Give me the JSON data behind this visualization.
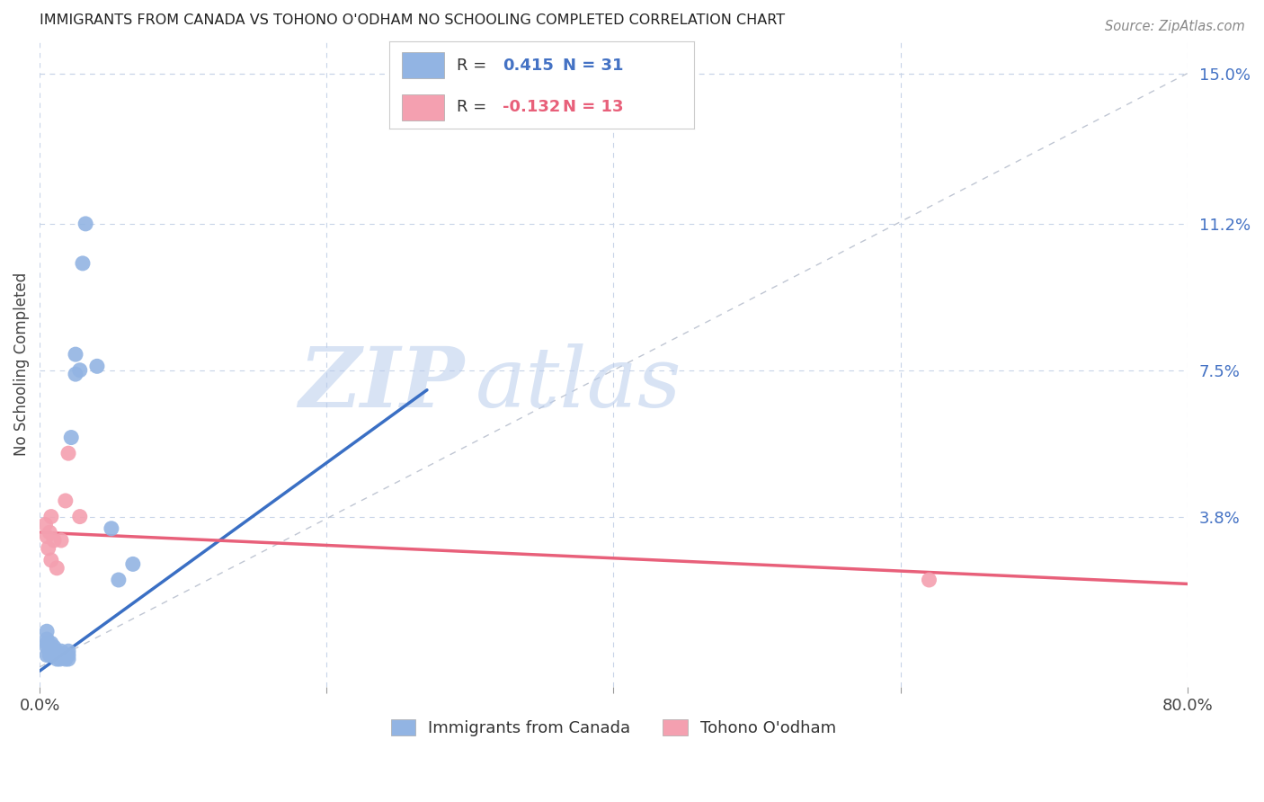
{
  "title": "IMMIGRANTS FROM CANADA VS TOHONO O'ODHAM NO SCHOOLING COMPLETED CORRELATION CHART",
  "source": "Source: ZipAtlas.com",
  "ylabel": "No Schooling Completed",
  "xlim": [
    0.0,
    0.8
  ],
  "ylim": [
    -0.005,
    0.158
  ],
  "xticks": [
    0.0,
    0.2,
    0.4,
    0.6,
    0.8
  ],
  "xtick_labels": [
    "0.0%",
    "",
    "",
    "",
    "80.0%"
  ],
  "ytick_labels_right": [
    "15.0%",
    "11.2%",
    "7.5%",
    "3.8%"
  ],
  "yticks_right": [
    0.15,
    0.112,
    0.075,
    0.038
  ],
  "blue_R": "0.415",
  "blue_N": "31",
  "pink_R": "-0.132",
  "pink_N": "13",
  "blue_color": "#92b4e3",
  "pink_color": "#f4a0b0",
  "blue_line_color": "#3a6fc4",
  "pink_line_color": "#e8607a",
  "diagonal_color": "#b0b8c8",
  "watermark_zip": "ZIP",
  "watermark_atlas": "atlas",
  "blue_scatter_x": [
    0.005,
    0.005,
    0.005,
    0.005,
    0.005,
    0.007,
    0.007,
    0.008,
    0.008,
    0.01,
    0.01,
    0.012,
    0.012,
    0.014,
    0.015,
    0.015,
    0.018,
    0.018,
    0.02,
    0.02,
    0.02,
    0.022,
    0.025,
    0.025,
    0.028,
    0.03,
    0.032,
    0.04,
    0.05,
    0.055,
    0.065
  ],
  "blue_scatter_y": [
    0.003,
    0.005,
    0.006,
    0.007,
    0.009,
    0.003,
    0.004,
    0.003,
    0.006,
    0.004,
    0.005,
    0.002,
    0.004,
    0.002,
    0.003,
    0.004,
    0.002,
    0.003,
    0.002,
    0.003,
    0.004,
    0.058,
    0.074,
    0.079,
    0.075,
    0.102,
    0.112,
    0.076,
    0.035,
    0.022,
    0.026
  ],
  "pink_scatter_x": [
    0.004,
    0.005,
    0.006,
    0.007,
    0.008,
    0.008,
    0.01,
    0.012,
    0.015,
    0.018,
    0.02,
    0.028,
    0.62
  ],
  "pink_scatter_y": [
    0.036,
    0.033,
    0.03,
    0.034,
    0.027,
    0.038,
    0.032,
    0.025,
    0.032,
    0.042,
    0.054,
    0.038,
    0.022
  ],
  "blue_trend_x": [
    0.0,
    0.27
  ],
  "blue_trend_y": [
    -0.001,
    0.07
  ],
  "pink_trend_x": [
    0.0,
    0.8
  ],
  "pink_trend_y": [
    0.034,
    0.021
  ],
  "background_color": "#ffffff",
  "grid_color": "#c8d4e8",
  "legend_label_blue": "Immigrants from Canada",
  "legend_label_pink": "Tohono O'odham"
}
